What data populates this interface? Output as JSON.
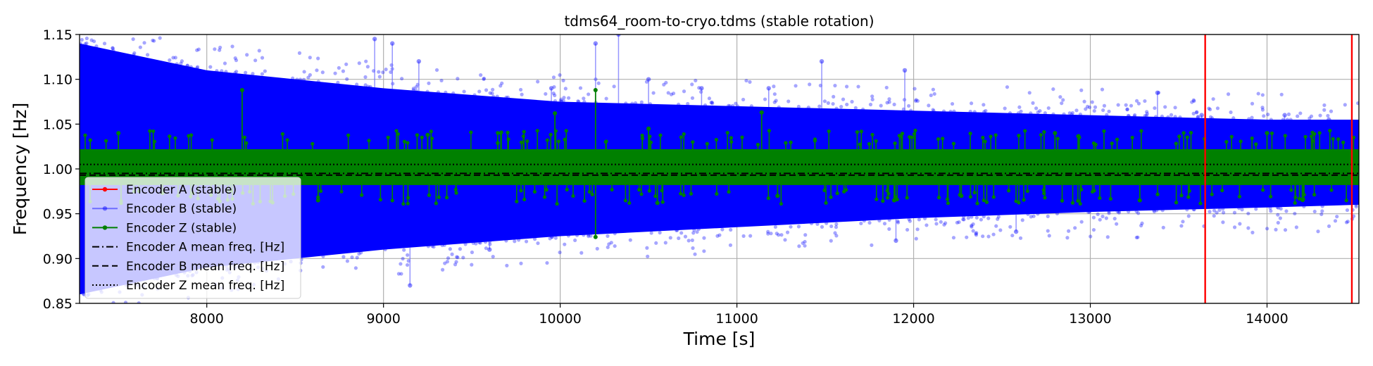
{
  "chart_data": {
    "type": "scatter",
    "title": "tdms64_room-to-cryo.tdms (stable rotation)",
    "xlabel": "Time [s]",
    "ylabel": "Frequency [Hz]",
    "xlim": [
      7280,
      14520
    ],
    "ylim": [
      0.85,
      1.15
    ],
    "xticks": [
      8000,
      9000,
      10000,
      11000,
      12000,
      13000,
      14000
    ],
    "yticks": [
      0.85,
      0.9,
      0.95,
      1.0,
      1.05,
      1.1,
      1.15
    ],
    "xtick_labels": [
      "8000",
      "9000",
      "10000",
      "11000",
      "12000",
      "13000",
      "14000"
    ],
    "ytick_labels": [
      "0.85",
      "0.90",
      "0.95",
      "1.00",
      "1.05",
      "1.10",
      "1.15"
    ],
    "grid": true,
    "legend_position": "lower-left",
    "series": [
      {
        "name": "Encoder A (stable)",
        "color": "#ff0000",
        "style": "vertical-lines",
        "x": [
          13650,
          14480
        ]
      },
      {
        "name": "Encoder B (stable)",
        "color": "#0000ff",
        "style": "band",
        "x": [
          7280,
          8000,
          9000,
          10000,
          11000,
          12000,
          13000,
          14000,
          14520
        ],
        "upper": [
          1.14,
          1.11,
          1.09,
          1.075,
          1.07,
          1.065,
          1.06,
          1.055,
          1.055
        ],
        "lower": [
          0.86,
          0.89,
          0.91,
          0.925,
          0.935,
          0.945,
          0.952,
          0.957,
          0.96
        ],
        "outliers": [
          [
            8950,
            1.145
          ],
          [
            9050,
            1.14
          ],
          [
            9150,
            0.87
          ],
          [
            9200,
            1.12
          ],
          [
            9600,
            0.91
          ],
          [
            9950,
            1.09
          ],
          [
            10200,
            1.14
          ],
          [
            10330,
            1.15
          ],
          [
            10500,
            1.1
          ],
          [
            10800,
            1.09
          ],
          [
            11180,
            1.09
          ],
          [
            11480,
            1.12
          ],
          [
            11900,
            0.92
          ],
          [
            11950,
            1.11
          ],
          [
            12580,
            0.93
          ],
          [
            13380,
            1.085
          ],
          [
            13630,
            1.06
          ],
          [
            14100,
            1.06
          ],
          [
            14350,
            1.055
          ]
        ]
      },
      {
        "name": "Encoder Z (stable)",
        "color": "#008000",
        "style": "band",
        "x": [
          7280,
          14520
        ],
        "upper": [
          1.022,
          1.022
        ],
        "lower": [
          0.982,
          0.982
        ],
        "spikes": [
          [
            8200,
            1.088
          ],
          [
            8430,
            1.02
          ],
          [
            9970,
            1.062
          ],
          [
            10200,
            1.088
          ],
          [
            10200,
            0.924
          ],
          [
            10500,
            1.045
          ],
          [
            11140,
            1.063
          ],
          [
            8630,
            0.965
          ],
          [
            10550,
            0.962
          ],
          [
            11230,
            0.97
          ],
          [
            11890,
            0.965
          ],
          [
            12270,
            0.97
          ],
          [
            13280,
            0.965
          ],
          [
            13920,
            0.985
          ],
          [
            14000,
            1.04
          ],
          [
            7500,
            1.04
          ],
          [
            9250,
            1.038
          ],
          [
            12800,
            1.04
          ]
        ]
      },
      {
        "name": "Encoder A mean freq. [Hz]",
        "color": "#000000",
        "style": "dashdot",
        "y": 0.995
      },
      {
        "name": "Encoder B mean freq. [Hz]",
        "color": "#000000",
        "style": "dashed",
        "y": 0.993
      },
      {
        "name": "Encoder Z mean freq. [Hz]",
        "color": "#000000",
        "style": "dotted",
        "y": 1.005
      }
    ]
  }
}
